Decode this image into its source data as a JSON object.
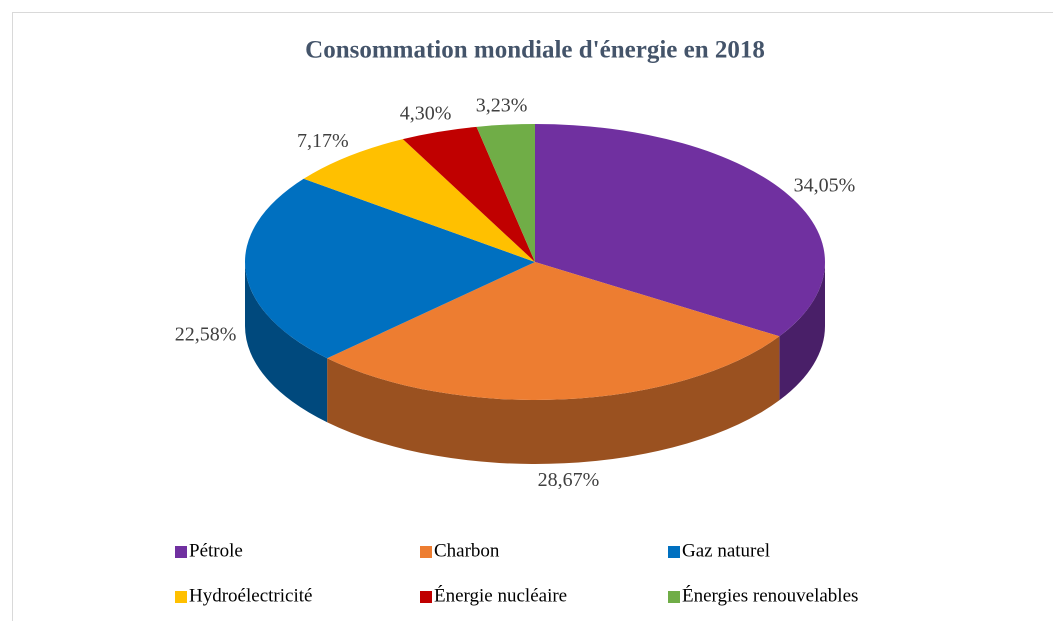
{
  "chart_data": {
    "type": "pie",
    "title": "Consommation mondiale d'énergie en 2018",
    "categories": [
      "Pétrole",
      "Charbon",
      "Gaz naturel",
      "Hydroélectricité",
      "Énergie nucléaire",
      "Énergies renouvelables"
    ],
    "values": [
      34.05,
      28.67,
      22.58,
      7.17,
      4.3,
      3.23
    ],
    "value_labels": [
      "34,05%",
      "28,67%",
      "22,58%",
      "7,17%",
      "4,30%",
      "3,23%"
    ],
    "colors": [
      "#7030a0",
      "#ed7d31",
      "#0070c0",
      "#ffc000",
      "#c00000",
      "#70ad47"
    ],
    "legend": "bottom"
  }
}
